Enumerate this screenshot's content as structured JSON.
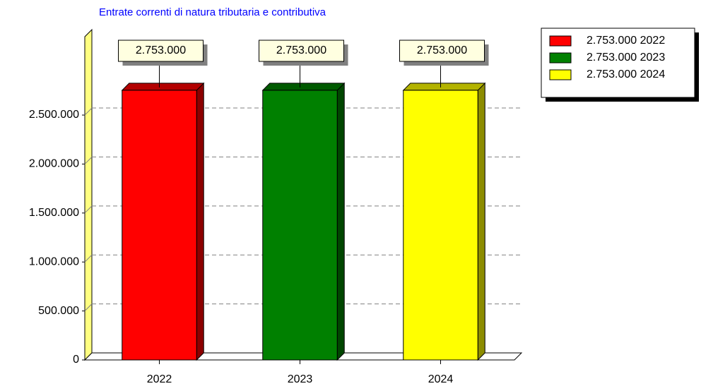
{
  "chart_data": {
    "type": "bar3d",
    "title": "Entrate correnti di natura tributaria e contributiva",
    "categories": [
      "2022",
      "2023",
      "2024"
    ],
    "values": [
      2753000,
      2753000,
      2753000
    ],
    "value_labels": [
      "2.753.000",
      "2.753.000",
      "2.753.000"
    ],
    "colors": [
      "#ff0000",
      "#008000",
      "#ffff00"
    ],
    "legend": [
      "2.753.000 2022",
      "2.753.000 2023",
      "2.753.000 2024"
    ],
    "legend_position": "right",
    "ylim": [
      0,
      3300000
    ],
    "yticks": [
      0,
      {
        "value": 500000,
        "label": "500.000"
      },
      {
        "value": 1000000,
        "label": "1.000.000"
      },
      {
        "value": 1500000,
        "label": "1.500.000"
      },
      {
        "value": 2000000,
        "label": "2.000.000"
      },
      {
        "value": 2500000,
        "label": "2.500.000"
      }
    ],
    "grid": true
  }
}
